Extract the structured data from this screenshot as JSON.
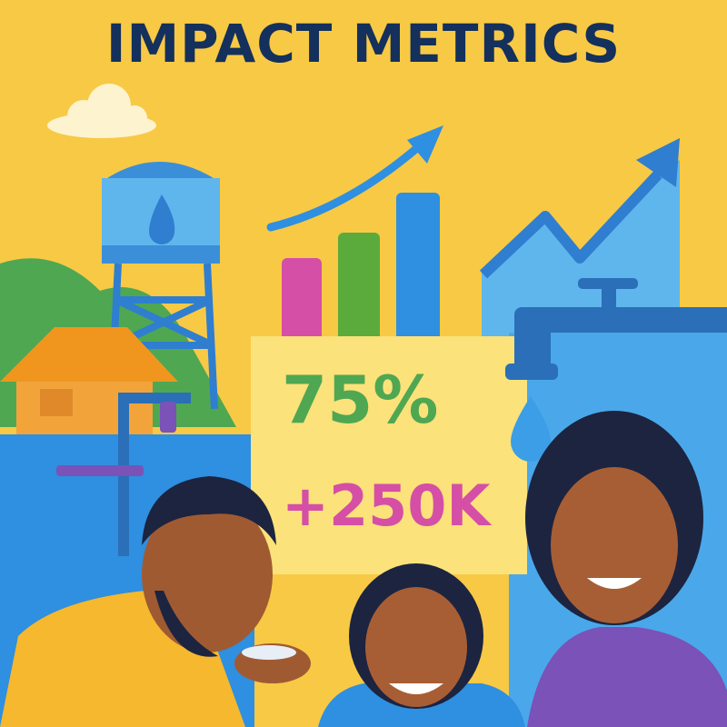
{
  "header": {
    "title": "IMPACT METRICS"
  },
  "stats": [
    {
      "value": "75%"
    },
    {
      "value": "+250K"
    }
  ],
  "colors": {
    "background": "#f8c945",
    "title": "#14305c",
    "stat_primary": "#4fa752",
    "stat_secondary": "#d54fa6",
    "water_blue": "#2f8fe0",
    "light_blue": "#5fb6ec",
    "panel": "#fbe27a"
  },
  "icons": [
    "cloud-icon",
    "water-tower-icon",
    "bar-chart-icon",
    "trend-arrow-icon",
    "water-tap-icon",
    "water-drop-icon",
    "house-icon"
  ]
}
